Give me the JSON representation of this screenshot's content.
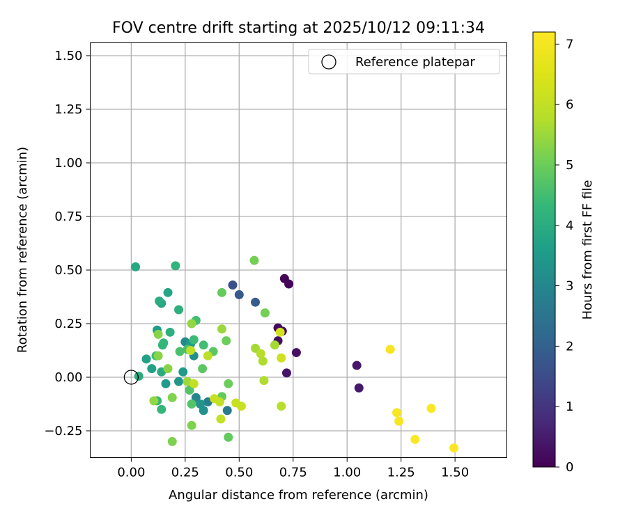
{
  "chart_data": {
    "type": "scatter",
    "title": "FOV centre drift starting at 2025/10/12 09:11:34",
    "xlabel": "Angular distance from reference (arcmin)",
    "ylabel": "Rotation from reference (arcmin)",
    "xlim": [
      -0.19,
      1.74
    ],
    "ylim": [
      -0.375,
      1.56
    ],
    "xticks": [
      "0.00",
      "0.25",
      "0.50",
      "0.75",
      "1.00",
      "1.25",
      "1.50"
    ],
    "xtick_values": [
      0,
      0.25,
      0.5,
      0.75,
      1.0,
      1.25,
      1.5
    ],
    "yticks": [
      "−0.25",
      "0.00",
      "0.25",
      "0.50",
      "0.75",
      "1.00",
      "1.25",
      "1.50"
    ],
    "ytick_values": [
      -0.25,
      0,
      0.25,
      0.5,
      0.75,
      1.0,
      1.25,
      1.5
    ],
    "grid": true,
    "legend": {
      "label": "Reference platepar",
      "position": "top-right"
    },
    "reference_point": {
      "x": 0.0,
      "y": 0.0
    },
    "colorbar": {
      "label": "Hours from first FF file",
      "min": 0,
      "max": 7.2,
      "ticks": [
        "0",
        "1",
        "2",
        "3",
        "4",
        "5",
        "6",
        "7"
      ],
      "tick_values": [
        0,
        1,
        2,
        3,
        4,
        5,
        6,
        7
      ],
      "colormap": "viridis"
    },
    "points": [
      {
        "x": 0.71,
        "y": 0.46,
        "h": 0.05
      },
      {
        "x": 0.73,
        "y": 0.435,
        "h": 0.1
      },
      {
        "x": 0.68,
        "y": 0.23,
        "h": 0.15
      },
      {
        "x": 0.7,
        "y": 0.215,
        "h": 0.2
      },
      {
        "x": 0.68,
        "y": 0.17,
        "h": 0.25
      },
      {
        "x": 0.765,
        "y": 0.115,
        "h": 0.3
      },
      {
        "x": 0.72,
        "y": 0.02,
        "h": 0.35
      },
      {
        "x": 1.045,
        "y": 0.055,
        "h": 0.4
      },
      {
        "x": 1.055,
        "y": -0.05,
        "h": 0.45
      },
      {
        "x": 0.47,
        "y": 0.43,
        "h": 1.6
      },
      {
        "x": 0.5,
        "y": 0.385,
        "h": 1.8
      },
      {
        "x": 0.575,
        "y": 0.35,
        "h": 1.9
      },
      {
        "x": 0.445,
        "y": -0.155,
        "h": 2.7
      },
      {
        "x": 0.355,
        "y": -0.115,
        "h": 2.8
      },
      {
        "x": 0.3,
        "y": -0.095,
        "h": 3.0
      },
      {
        "x": 0.25,
        "y": 0.165,
        "h": 3.1
      },
      {
        "x": 0.29,
        "y": 0.1,
        "h": 3.2
      },
      {
        "x": 0.32,
        "y": -0.125,
        "h": 3.3
      },
      {
        "x": 0.335,
        "y": -0.155,
        "h": 3.3
      },
      {
        "x": 0.22,
        "y": -0.02,
        "h": 3.4
      },
      {
        "x": 0.16,
        "y": -0.03,
        "h": 3.5
      },
      {
        "x": 0.24,
        "y": 0.025,
        "h": 3.5
      },
      {
        "x": 0.275,
        "y": 0.155,
        "h": 3.6
      },
      {
        "x": 0.12,
        "y": 0.22,
        "h": 3.6
      },
      {
        "x": 0.07,
        "y": 0.085,
        "h": 3.7
      },
      {
        "x": 0.095,
        "y": 0.04,
        "h": 3.7
      },
      {
        "x": 0.14,
        "y": 0.345,
        "h": 3.8
      },
      {
        "x": 0.17,
        "y": 0.395,
        "h": 3.8
      },
      {
        "x": 0.02,
        "y": 0.515,
        "h": 3.9
      },
      {
        "x": 0.035,
        "y": 0.005,
        "h": 4.0
      },
      {
        "x": 0.13,
        "y": 0.355,
        "h": 4.0
      },
      {
        "x": 0.14,
        "y": 0.025,
        "h": 4.0
      },
      {
        "x": 0.18,
        "y": 0.21,
        "h": 4.1
      },
      {
        "x": 0.22,
        "y": 0.315,
        "h": 4.1
      },
      {
        "x": 0.205,
        "y": 0.52,
        "h": 4.2
      },
      {
        "x": 0.145,
        "y": 0.15,
        "h": 4.2
      },
      {
        "x": 0.15,
        "y": 0.16,
        "h": 4.3
      },
      {
        "x": 0.14,
        "y": -0.15,
        "h": 4.3
      },
      {
        "x": 0.12,
        "y": -0.11,
        "h": 4.3
      },
      {
        "x": 0.115,
        "y": 0.1,
        "h": 4.4
      },
      {
        "x": 0.29,
        "y": 0.175,
        "h": 4.4
      },
      {
        "x": 0.3,
        "y": 0.265,
        "h": 4.5
      },
      {
        "x": 0.335,
        "y": 0.15,
        "h": 4.5
      },
      {
        "x": 0.26,
        "y": 0.13,
        "h": 4.6
      },
      {
        "x": 0.225,
        "y": 0.12,
        "h": 4.6
      },
      {
        "x": 0.27,
        "y": -0.06,
        "h": 4.7
      },
      {
        "x": 0.28,
        "y": -0.125,
        "h": 4.7
      },
      {
        "x": 0.33,
        "y": 0.04,
        "h": 4.8
      },
      {
        "x": 0.38,
        "y": 0.12,
        "h": 4.8
      },
      {
        "x": 0.42,
        "y": 0.395,
        "h": 4.9
      },
      {
        "x": 0.42,
        "y": -0.09,
        "h": 4.9
      },
      {
        "x": 0.45,
        "y": -0.28,
        "h": 4.9
      },
      {
        "x": 0.44,
        "y": 0.17,
        "h": 5.0
      },
      {
        "x": 0.45,
        "y": -0.03,
        "h": 5.0
      },
      {
        "x": 0.57,
        "y": 0.545,
        "h": 5.1
      },
      {
        "x": 0.62,
        "y": 0.3,
        "h": 5.1
      },
      {
        "x": 0.19,
        "y": -0.3,
        "h": 5.2
      },
      {
        "x": 0.28,
        "y": -0.225,
        "h": 5.2
      },
      {
        "x": 0.19,
        "y": -0.095,
        "h": 5.2
      },
      {
        "x": 0.17,
        "y": 0.04,
        "h": 5.3
      },
      {
        "x": 0.125,
        "y": 0.2,
        "h": 5.3
      },
      {
        "x": 0.125,
        "y": 0.1,
        "h": 5.3
      },
      {
        "x": 0.105,
        "y": -0.11,
        "h": 5.4
      },
      {
        "x": 0.28,
        "y": 0.25,
        "h": 5.4
      },
      {
        "x": 0.26,
        "y": -0.02,
        "h": 5.5
      },
      {
        "x": 0.42,
        "y": 0.225,
        "h": 5.5
      },
      {
        "x": 0.575,
        "y": 0.135,
        "h": 5.6
      },
      {
        "x": 0.665,
        "y": 0.15,
        "h": 5.6
      },
      {
        "x": 0.61,
        "y": 0.075,
        "h": 5.7
      },
      {
        "x": 0.615,
        "y": -0.015,
        "h": 5.7
      },
      {
        "x": 0.6,
        "y": 0.11,
        "h": 5.8
      },
      {
        "x": 0.695,
        "y": -0.135,
        "h": 5.8
      },
      {
        "x": 0.355,
        "y": 0.1,
        "h": 5.9
      },
      {
        "x": 0.275,
        "y": 0.125,
        "h": 5.9
      },
      {
        "x": 0.29,
        "y": -0.03,
        "h": 6.0
      },
      {
        "x": 0.41,
        "y": -0.115,
        "h": 6.0
      },
      {
        "x": 0.415,
        "y": -0.195,
        "h": 6.0
      },
      {
        "x": 0.385,
        "y": -0.1,
        "h": 6.1
      },
      {
        "x": 0.485,
        "y": -0.12,
        "h": 6.1
      },
      {
        "x": 0.51,
        "y": -0.135,
        "h": 6.1
      },
      {
        "x": 0.695,
        "y": 0.09,
        "h": 6.2
      },
      {
        "x": 0.69,
        "y": 0.21,
        "h": 6.3
      },
      {
        "x": 1.2,
        "y": 0.13,
        "h": 7.05
      },
      {
        "x": 1.23,
        "y": -0.165,
        "h": 7.1
      },
      {
        "x": 1.24,
        "y": -0.205,
        "h": 7.1
      },
      {
        "x": 1.315,
        "y": -0.29,
        "h": 7.15
      },
      {
        "x": 1.39,
        "y": -0.145,
        "h": 7.15
      },
      {
        "x": 1.495,
        "y": -0.33,
        "h": 7.2
      }
    ]
  }
}
